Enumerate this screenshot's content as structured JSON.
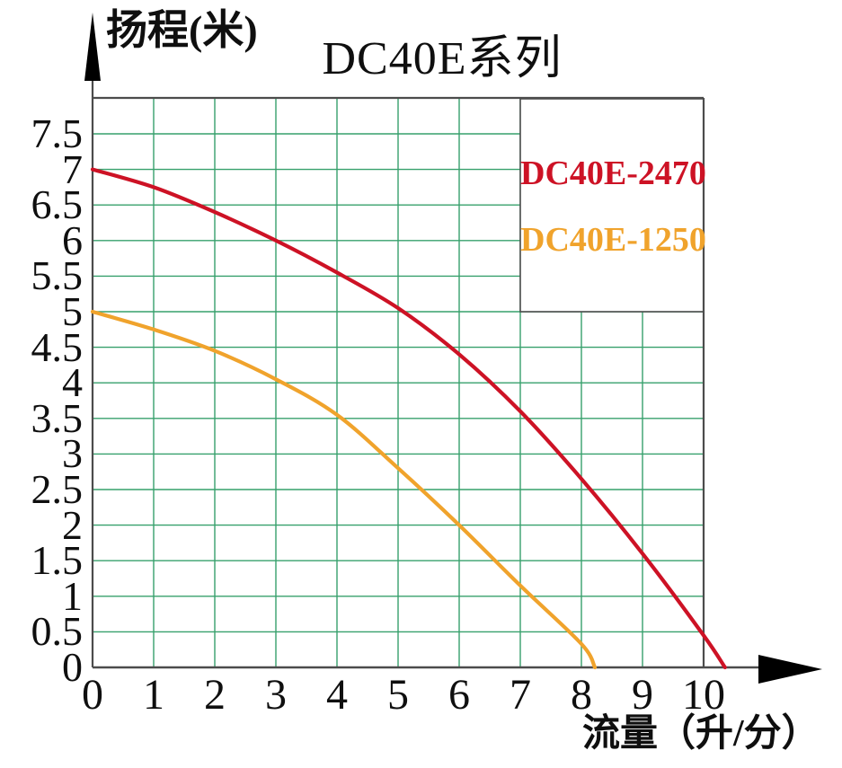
{
  "title": "DC40E系列",
  "y_axis": {
    "label": "扬程(米)",
    "tick_labels": [
      "7.5",
      "7",
      "6.5",
      "6",
      "5.5",
      "5",
      "4.5",
      "4",
      "3.5",
      "3",
      "2.5",
      "2",
      "1.5",
      "1",
      "0.5",
      "0"
    ]
  },
  "x_axis": {
    "label": "流量（升/分）",
    "tick_labels": [
      "0",
      "1",
      "2",
      "3",
      "4",
      "5",
      "6",
      "7",
      "8",
      "9",
      "10"
    ]
  },
  "legend": {
    "items": [
      {
        "label": "DC40E-2470",
        "color": "#cd1225"
      },
      {
        "label": "DC40E-1250",
        "color": "#f0a32c"
      }
    ]
  },
  "chart_data": {
    "type": "line",
    "title": "DC40E系列",
    "xlabel": "流量（升/分）",
    "ylabel": "扬程(米)",
    "xlim": [
      0,
      10.5
    ],
    "ylim": [
      0,
      8
    ],
    "x_ticks": [
      0,
      1,
      2,
      3,
      4,
      5,
      6,
      7,
      8,
      9,
      10
    ],
    "y_ticks": [
      0,
      0.5,
      1,
      1.5,
      2,
      2.5,
      3,
      3.5,
      4,
      4.5,
      5,
      5.5,
      6,
      6.5,
      7,
      7.5
    ],
    "grid": "on",
    "grid_color": "#37a06c",
    "axis_color": "#4c4c4c",
    "arrow_color": "#000000",
    "legend_position": "upper right",
    "series": [
      {
        "name": "DC40E-2470",
        "color": "#cd1225",
        "points": [
          [
            0,
            7.0
          ],
          [
            1,
            6.75
          ],
          [
            2,
            6.4
          ],
          [
            3,
            6.0
          ],
          [
            4,
            5.55
          ],
          [
            5,
            5.05
          ],
          [
            6,
            4.4
          ],
          [
            7,
            3.6
          ],
          [
            8,
            2.65
          ],
          [
            9,
            1.6
          ],
          [
            10,
            0.45
          ],
          [
            10.35,
            0
          ]
        ]
      },
      {
        "name": "DC40E-1250",
        "color": "#f0a32c",
        "points": [
          [
            0,
            5.0
          ],
          [
            1,
            4.75
          ],
          [
            2,
            4.45
          ],
          [
            3,
            4.05
          ],
          [
            4,
            3.55
          ],
          [
            5,
            2.8
          ],
          [
            6,
            2.0
          ],
          [
            7,
            1.15
          ],
          [
            8,
            0.33
          ],
          [
            8.22,
            0
          ]
        ]
      }
    ]
  }
}
